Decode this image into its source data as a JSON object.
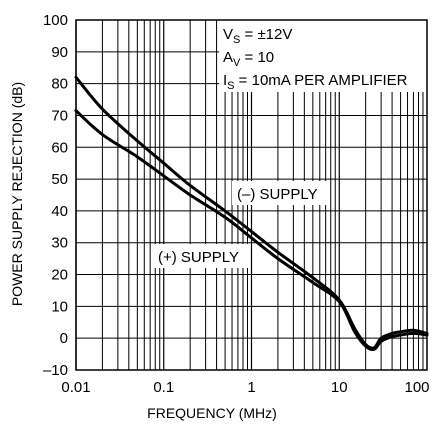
{
  "chart_data": {
    "type": "line",
    "xlabel": "FREQUENCY (MHz)",
    "ylabel": "POWER SUPPLY REJECTION (dB)",
    "x_scale": "log",
    "xlim": [
      0.01,
      100
    ],
    "ylim": [
      -10,
      100
    ],
    "grid": true,
    "x_tick_labels": [
      "0.01",
      "0.1",
      "1",
      "10",
      "100"
    ],
    "y_tick_labels": [
      "100",
      "90",
      "80",
      "70",
      "60",
      "50",
      "40",
      "30",
      "20",
      "10",
      "0",
      "–10"
    ],
    "conditions": [
      {
        "main": "V",
        "sub": "S",
        "rest": " = ±12V"
      },
      {
        "main": "A",
        "sub": "V",
        "rest": " = 10"
      },
      {
        "main": "I",
        "sub": "S",
        "rest": " = 10mA PER AMPLIFIER"
      }
    ],
    "series": [
      {
        "name": "(–) SUPPLY",
        "x": [
          0.01,
          0.02,
          0.05,
          0.1,
          0.2,
          0.5,
          1,
          2,
          5,
          10,
          15,
          20,
          25,
          30,
          40,
          50,
          70,
          100
        ],
        "y": [
          82,
          72,
          62,
          55,
          48,
          40,
          33.5,
          27,
          19,
          12,
          3,
          -2,
          -3,
          0,
          1.5,
          2,
          2.5,
          1.5
        ]
      },
      {
        "name": "(+) SUPPLY",
        "x": [
          0.01,
          0.02,
          0.05,
          0.1,
          0.2,
          0.5,
          1,
          2,
          5,
          10,
          15,
          20,
          25,
          30,
          40,
          50,
          70,
          100
        ],
        "y": [
          71.5,
          64,
          57,
          51,
          45,
          38,
          31.5,
          25,
          17.5,
          11.5,
          2,
          -2.5,
          -3.5,
          -1,
          0.5,
          1,
          1.5,
          1
        ]
      }
    ]
  }
}
